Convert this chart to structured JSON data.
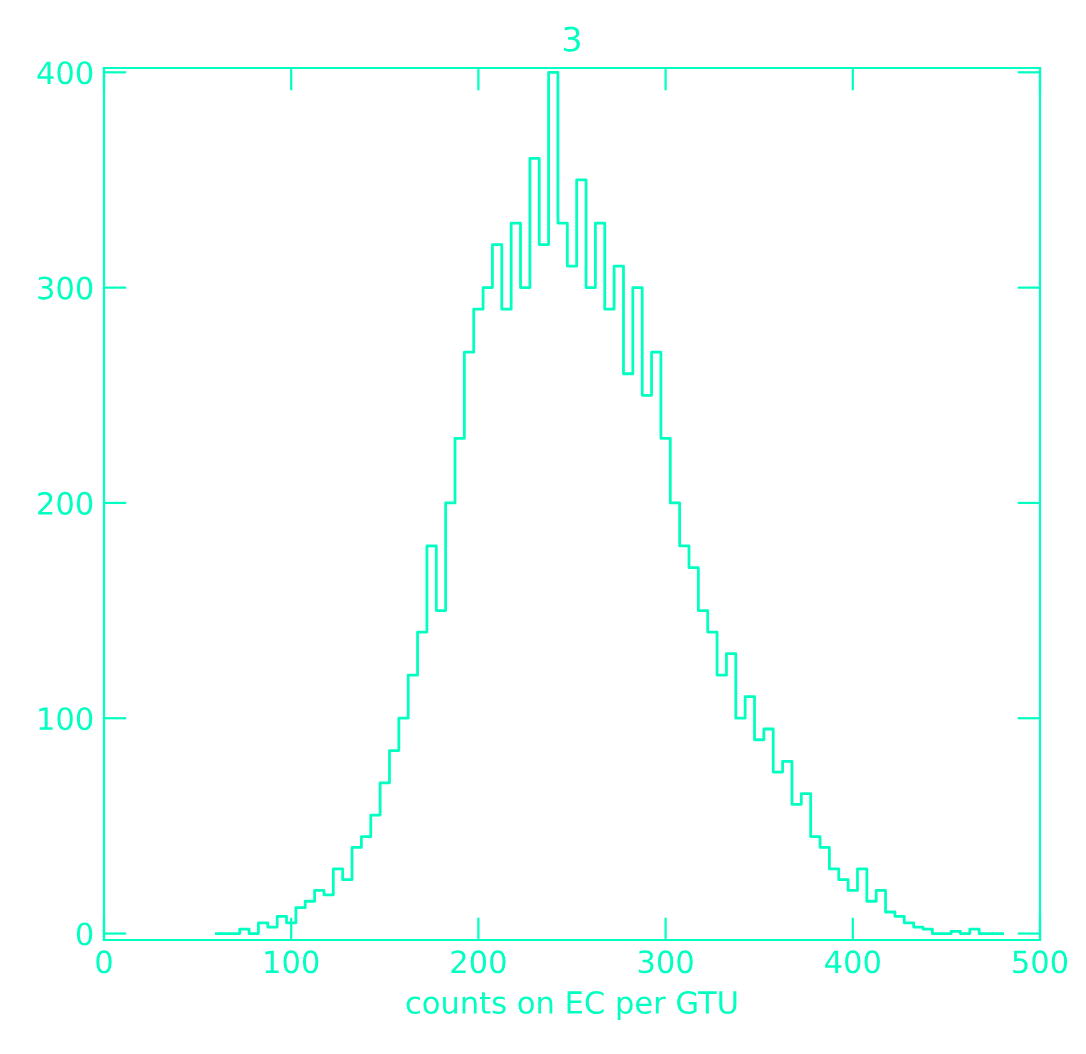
{
  "chart_data": {
    "type": "step",
    "title": "3",
    "xlabel": "counts on EC per GTU",
    "x": [
      60,
      65,
      70,
      75,
      80,
      85,
      90,
      95,
      100,
      105,
      110,
      115,
      120,
      125,
      130,
      135,
      140,
      145,
      150,
      155,
      160,
      165,
      170,
      175,
      180,
      185,
      190,
      195,
      200,
      205,
      210,
      215,
      220,
      225,
      230,
      235,
      240,
      245,
      250,
      255,
      260,
      265,
      270,
      275,
      280,
      285,
      290,
      295,
      300,
      305,
      310,
      315,
      320,
      325,
      330,
      335,
      340,
      345,
      350,
      355,
      360,
      365,
      370,
      375,
      380,
      385,
      390,
      395,
      400,
      405,
      410,
      415,
      420,
      425,
      430,
      435,
      440,
      445,
      450,
      455,
      460,
      465,
      470,
      475,
      480
    ],
    "series": [
      {
        "color": "#00ffc0",
        "values": [
          0,
          0,
          0,
          2,
          0,
          5,
          3,
          8,
          5,
          12,
          15,
          20,
          18,
          30,
          25,
          40,
          45,
          55,
          70,
          85,
          100,
          120,
          140,
          180,
          150,
          200,
          230,
          270,
          290,
          300,
          320,
          290,
          330,
          300,
          360,
          320,
          400,
          330,
          310,
          350,
          300,
          330,
          290,
          310,
          260,
          300,
          250,
          270,
          230,
          200,
          180,
          170,
          150,
          140,
          120,
          130,
          100,
          110,
          90,
          95,
          75,
          80,
          60,
          65,
          45,
          40,
          30,
          25,
          20,
          30,
          15,
          20,
          10,
          8,
          5,
          3,
          2,
          0,
          0,
          1,
          0,
          2,
          0,
          0,
          0
        ]
      }
    ],
    "xlim": [
      0,
      500
    ],
    "ylim": [
      -3,
      402
    ],
    "xticks": [
      0,
      100,
      200,
      300,
      400,
      500
    ],
    "yticks": [
      0,
      100,
      200,
      300,
      400
    ],
    "grid": false
  }
}
